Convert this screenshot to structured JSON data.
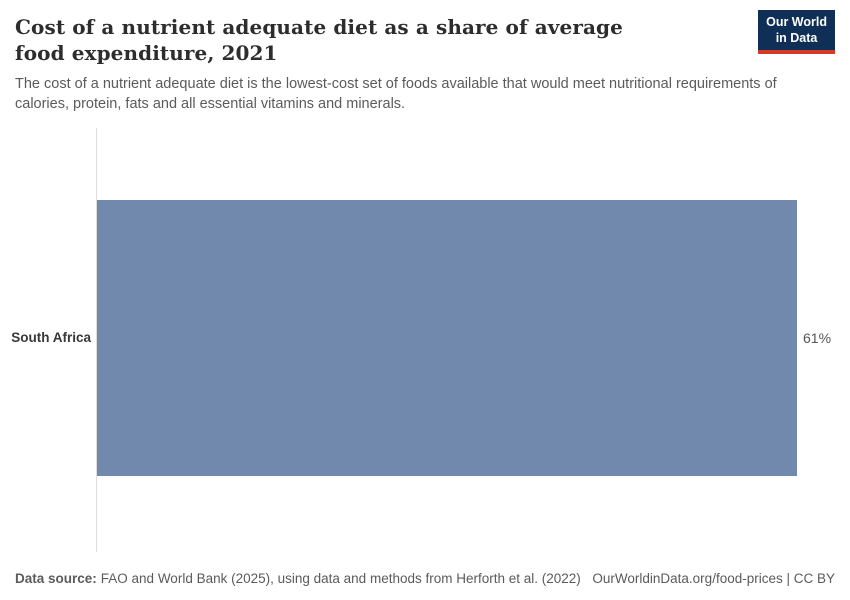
{
  "header": {
    "title": "Cost of a nutrient adequate diet as a share of average food expenditure, 2021",
    "subtitle": "The cost of a nutrient adequate diet is the lowest-cost set of foods available that would meet nutritional requirements of calories, protein, fats and all essential vitamins and minerals.",
    "logo": {
      "line1": "Our World",
      "line2": "in Data"
    }
  },
  "chart_data": {
    "type": "bar",
    "orientation": "horizontal",
    "title": "Cost of a nutrient adequate diet as a share of average food expenditure, 2021",
    "categories": [
      "South Africa"
    ],
    "values": [
      61
    ],
    "value_labels": [
      "61%"
    ],
    "unit": "%",
    "xlim": [
      0,
      61
    ],
    "grid": false,
    "legend": "none",
    "bar_color": "#7189ad"
  },
  "footer": {
    "datasource_label": "Data source:",
    "datasource_text": "FAO and World Bank (2025), using data and methods from Herforth et al. (2022)",
    "right_text": "OurWorldinData.org/food-prices | CC BY"
  },
  "colors": {
    "bar": "#7189ad",
    "logo_bg": "#102f56",
    "logo_accent": "#d33a2a",
    "title_text": "#2d2d2d",
    "muted_text": "#5b5b5b",
    "axis_line": "#dedede"
  }
}
